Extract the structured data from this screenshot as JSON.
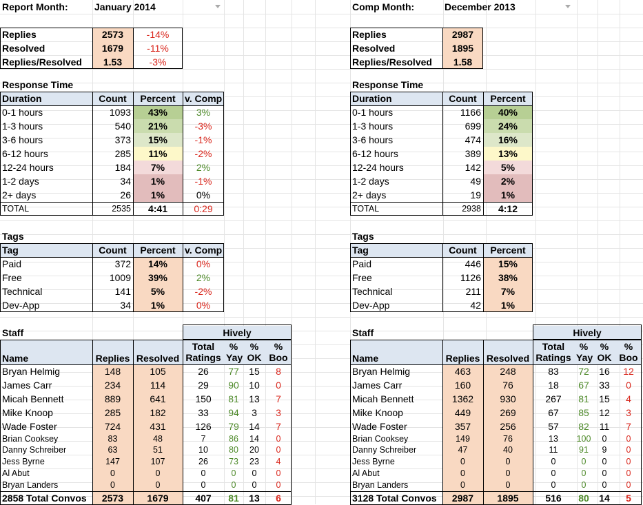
{
  "colors": {
    "peach": "#f9d9c2",
    "header_blue": "#dde6f1",
    "green_dark": "#b7cf94",
    "green_mid": "#cadcae",
    "green_light": "#dde7c9",
    "yellow": "#fdf8c9",
    "pink_light": "#f3dada",
    "pink": "#e2bcbc",
    "negative_text": "#d9261c",
    "positive_text": "#4e8a2a"
  },
  "left": {
    "month_label": "Report Month:",
    "month_value": "January 2014",
    "summary": [
      {
        "label": "Replies",
        "value": "2573",
        "change": "-14%"
      },
      {
        "label": "Resolved",
        "value": "1679",
        "change": "-11%"
      },
      {
        "label": "Replies/Resolved",
        "value": "1.53",
        "change": "-3%"
      }
    ],
    "response_title": "Response Time",
    "response_headers": [
      "Duration",
      "Count",
      "Percent",
      "v. Comp"
    ],
    "response_rows": [
      {
        "duration": "0-1 hours",
        "count": "1093",
        "percent": "43%",
        "comp": "3%"
      },
      {
        "duration": "1-3 hours",
        "count": "540",
        "percent": "21%",
        "comp": "-3%"
      },
      {
        "duration": "3-6 hours",
        "count": "373",
        "percent": "15%",
        "comp": "-1%"
      },
      {
        "duration": "6-12 hours",
        "count": "285",
        "percent": "11%",
        "comp": "-2%"
      },
      {
        "duration": "12-24 hours",
        "count": "184",
        "percent": "7%",
        "comp": "2%"
      },
      {
        "duration": "1-2 days",
        "count": "34",
        "percent": "1%",
        "comp": "-1%"
      },
      {
        "duration": "2+ days",
        "count": "26",
        "percent": "1%",
        "comp": "0%"
      }
    ],
    "response_total": {
      "label": "TOTAL",
      "count": "2535",
      "time": "4:41",
      "comp": "0:29"
    },
    "tags_title": "Tags",
    "tags_headers": [
      "Tag",
      "Count",
      "Percent",
      "v. Comp"
    ],
    "tags_rows": [
      {
        "tag": "Paid",
        "count": "372",
        "percent": "14%",
        "comp": "0%"
      },
      {
        "tag": "Free",
        "count": "1009",
        "percent": "39%",
        "comp": "2%"
      },
      {
        "tag": "Technical",
        "count": "141",
        "percent": "5%",
        "comp": "-2%"
      },
      {
        "tag": "Dev-App",
        "count": "34",
        "percent": "1%",
        "comp": "0%"
      }
    ],
    "staff_title": "Staff",
    "hively_label": "Hively",
    "staff_headers": {
      "name": "Name",
      "replies": "Replies",
      "resolved": "Resolved",
      "total_1": "Total",
      "total_2": "Ratings",
      "yay_1": "%",
      "yay_2": "Yay",
      "ok_1": "%",
      "ok_2": "OK",
      "boo_1": "%",
      "boo_2": "Boo"
    },
    "staff_rows": [
      {
        "name": "Bryan Helmig",
        "replies": "148",
        "resolved": "105",
        "ratings": "26",
        "yay": "77",
        "ok": "15",
        "boo": "8"
      },
      {
        "name": "James Carr",
        "replies": "234",
        "resolved": "114",
        "ratings": "29",
        "yay": "90",
        "ok": "10",
        "boo": "0"
      },
      {
        "name": "Micah Bennett",
        "replies": "889",
        "resolved": "641",
        "ratings": "150",
        "yay": "81",
        "ok": "13",
        "boo": "7"
      },
      {
        "name": "Mike Knoop",
        "replies": "285",
        "resolved": "182",
        "ratings": "33",
        "yay": "94",
        "ok": "3",
        "boo": "3"
      },
      {
        "name": "Wade Foster",
        "replies": "724",
        "resolved": "431",
        "ratings": "126",
        "yay": "79",
        "ok": "14",
        "boo": "7"
      },
      {
        "name": "Brian Cooksey",
        "replies": "83",
        "resolved": "48",
        "ratings": "7",
        "yay": "86",
        "ok": "14",
        "boo": "0"
      },
      {
        "name": "Danny Schreiber",
        "replies": "63",
        "resolved": "51",
        "ratings": "10",
        "yay": "80",
        "ok": "20",
        "boo": "0"
      },
      {
        "name": "Jess Byrne",
        "replies": "147",
        "resolved": "107",
        "ratings": "26",
        "yay": "73",
        "ok": "23",
        "boo": "4"
      },
      {
        "name": "Al Abut",
        "replies": "0",
        "resolved": "0",
        "ratings": "0",
        "yay": "0",
        "ok": "0",
        "boo": "0"
      },
      {
        "name": "Bryan Landers",
        "replies": "0",
        "resolved": "0",
        "ratings": "0",
        "yay": "0",
        "ok": "0",
        "boo": "0"
      }
    ],
    "staff_total": {
      "name": "2858 Total Convos",
      "replies": "2573",
      "resolved": "1679",
      "ratings": "407",
      "yay": "81",
      "ok": "13",
      "boo": "6"
    }
  },
  "right": {
    "month_label": "Comp Month:",
    "month_value": "December 2013",
    "summary": [
      {
        "label": "Replies",
        "value": "2987"
      },
      {
        "label": "Resolved",
        "value": "1895"
      },
      {
        "label": "Replies/Resolved",
        "value": "1.58"
      }
    ],
    "response_title": "Response Time",
    "response_headers": [
      "Duration",
      "Count",
      "Percent"
    ],
    "response_rows": [
      {
        "duration": "0-1 hours",
        "count": "1166",
        "percent": "40%"
      },
      {
        "duration": "1-3 hours",
        "count": "699",
        "percent": "24%"
      },
      {
        "duration": "3-6 hours",
        "count": "474",
        "percent": "16%"
      },
      {
        "duration": "6-12 hours",
        "count": "389",
        "percent": "13%"
      },
      {
        "duration": "12-24 hours",
        "count": "142",
        "percent": "5%"
      },
      {
        "duration": "1-2 days",
        "count": "49",
        "percent": "2%"
      },
      {
        "duration": "2+ days",
        "count": "19",
        "percent": "1%"
      }
    ],
    "response_total": {
      "label": "TOTAL",
      "count": "2938",
      "time": "4:12"
    },
    "tags_title": "Tags",
    "tags_headers": [
      "Tag",
      "Count",
      "Percent"
    ],
    "tags_rows": [
      {
        "tag": "Paid",
        "count": "446",
        "percent": "15%"
      },
      {
        "tag": "Free",
        "count": "1126",
        "percent": "38%"
      },
      {
        "tag": "Technical",
        "count": "211",
        "percent": "7%"
      },
      {
        "tag": "Dev-App",
        "count": "42",
        "percent": "1%"
      }
    ],
    "staff_title": "Staff",
    "hively_label": "Hively",
    "staff_headers": {
      "name": "Name",
      "replies": "Replies",
      "resolved": "Resolved",
      "total_1": "Total",
      "total_2": "Ratings",
      "yay_1": "%",
      "yay_2": "Yay",
      "ok_1": "%",
      "ok_2": "OK",
      "boo_1": "%",
      "boo_2": "Boo"
    },
    "staff_rows": [
      {
        "name": "Bryan Helmig",
        "replies": "463",
        "resolved": "248",
        "ratings": "83",
        "yay": "72",
        "ok": "16",
        "boo": "12"
      },
      {
        "name": "James Carr",
        "replies": "160",
        "resolved": "76",
        "ratings": "18",
        "yay": "67",
        "ok": "33",
        "boo": "0"
      },
      {
        "name": "Micah Bennett",
        "replies": "1362",
        "resolved": "930",
        "ratings": "267",
        "yay": "81",
        "ok": "15",
        "boo": "4"
      },
      {
        "name": "Mike Knoop",
        "replies": "449",
        "resolved": "269",
        "ratings": "67",
        "yay": "85",
        "ok": "12",
        "boo": "3"
      },
      {
        "name": "Wade Foster",
        "replies": "357",
        "resolved": "256",
        "ratings": "57",
        "yay": "82",
        "ok": "11",
        "boo": "7"
      },
      {
        "name": "Brian Cooksey",
        "replies": "149",
        "resolved": "76",
        "ratings": "13",
        "yay": "100",
        "ok": "0",
        "boo": "0"
      },
      {
        "name": "Danny Schreiber",
        "replies": "47",
        "resolved": "40",
        "ratings": "11",
        "yay": "91",
        "ok": "9",
        "boo": "0"
      },
      {
        "name": "Jess Byrne",
        "replies": "0",
        "resolved": "0",
        "ratings": "0",
        "yay": "0",
        "ok": "0",
        "boo": "0"
      },
      {
        "name": "Al Abut",
        "replies": "0",
        "resolved": "0",
        "ratings": "0",
        "yay": "0",
        "ok": "0",
        "boo": "0"
      },
      {
        "name": "Bryan Landers",
        "replies": "0",
        "resolved": "0",
        "ratings": "0",
        "yay": "0",
        "ok": "0",
        "boo": "0"
      }
    ],
    "staff_total": {
      "name": "3128 Total Convos",
      "replies": "2987",
      "resolved": "1895",
      "ratings": "516",
      "yay": "80",
      "ok": "14",
      "boo": "5"
    }
  }
}
